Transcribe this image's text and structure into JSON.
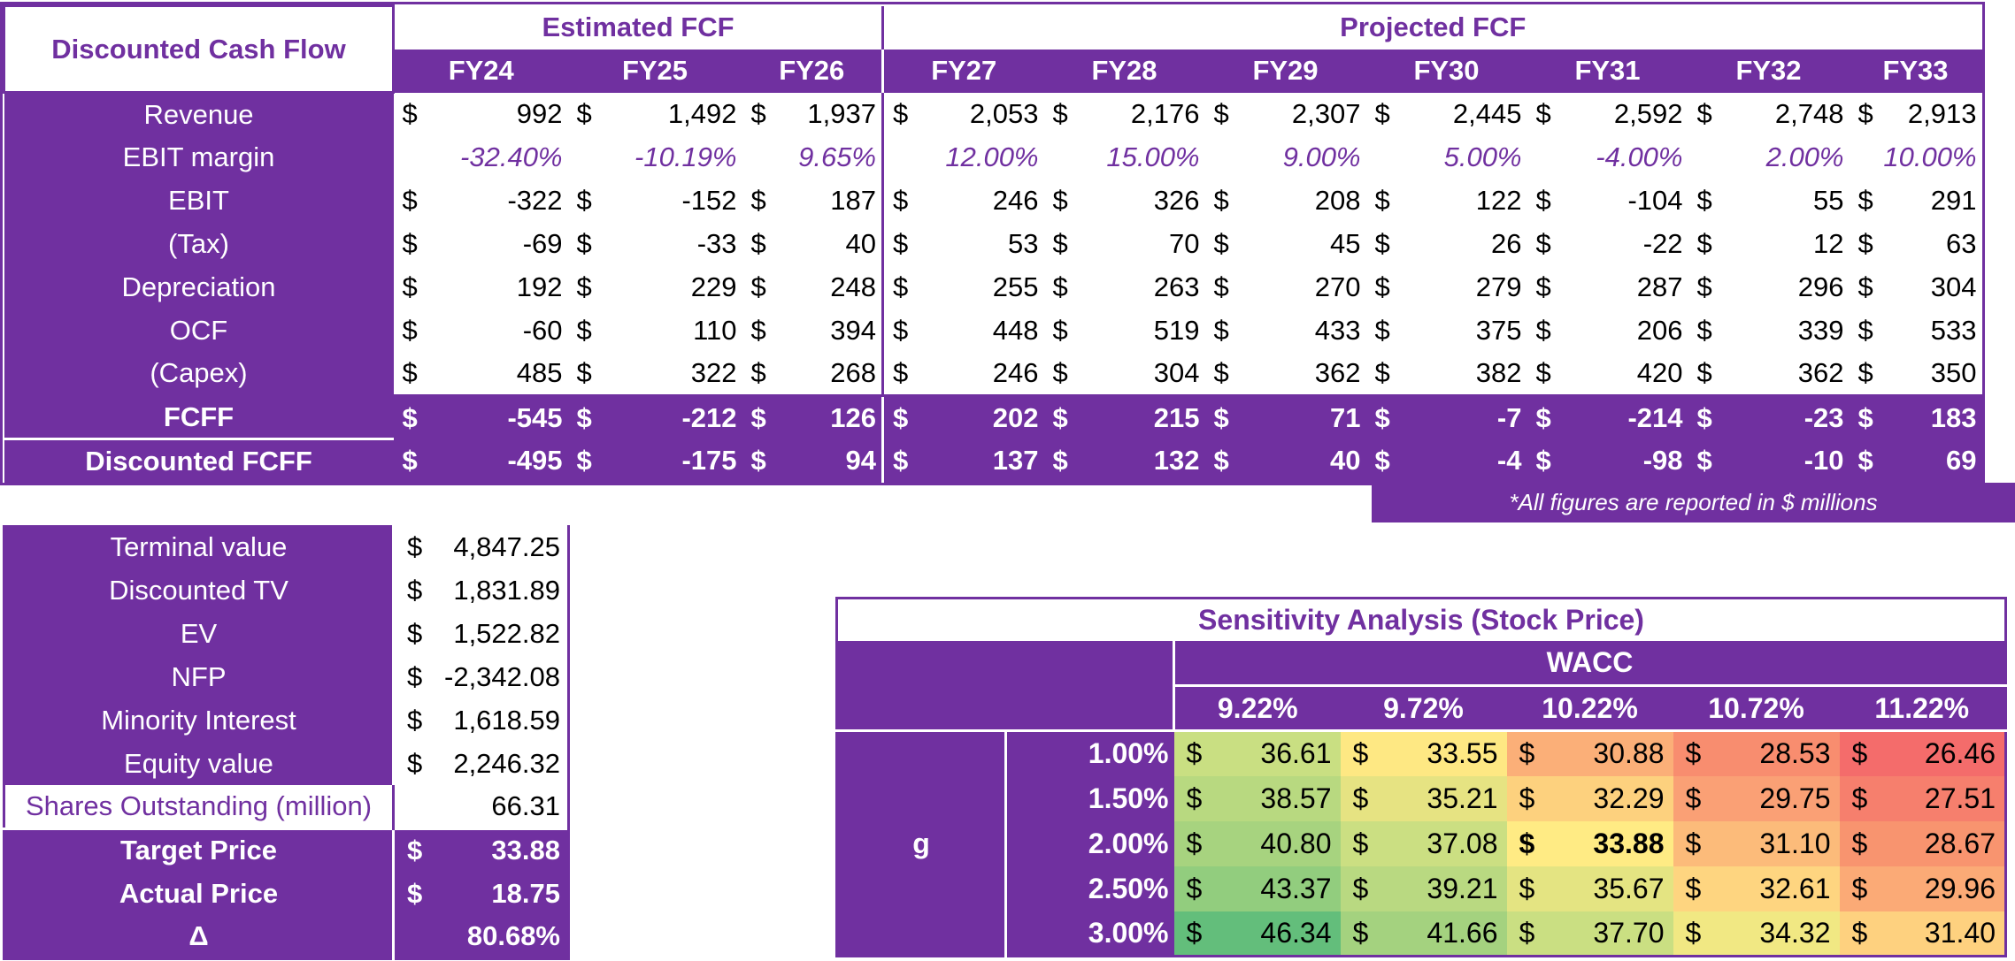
{
  "dcf": {
    "title": "Discounted Cash Flow",
    "estimated_label": "Estimated FCF",
    "projected_label": "Projected FCF",
    "currency": "$",
    "years": [
      "FY24",
      "FY25",
      "FY26",
      "FY27",
      "FY28",
      "FY29",
      "FY30",
      "FY31",
      "FY32",
      "FY33"
    ],
    "rows": [
      {
        "label": "Revenue",
        "type": "money",
        "values": [
          "992",
          "1,492",
          "1,937",
          "2,053",
          "2,176",
          "2,307",
          "2,445",
          "2,592",
          "2,748",
          "2,913"
        ]
      },
      {
        "label": "EBIT margin",
        "type": "pct",
        "values": [
          "-32.40%",
          "-10.19%",
          "9.65%",
          "12.00%",
          "15.00%",
          "9.00%",
          "5.00%",
          "-4.00%",
          "2.00%",
          "10.00%"
        ]
      },
      {
        "label": "EBIT",
        "type": "money",
        "values": [
          "-322",
          "-152",
          "187",
          "246",
          "326",
          "208",
          "122",
          "-104",
          "55",
          "291"
        ]
      },
      {
        "label": "(Tax)",
        "type": "money",
        "values": [
          "-69",
          "-33",
          "40",
          "53",
          "70",
          "45",
          "26",
          "-22",
          "12",
          "63"
        ]
      },
      {
        "label": "Depreciation",
        "type": "money",
        "values": [
          "192",
          "229",
          "248",
          "255",
          "263",
          "270",
          "279",
          "287",
          "296",
          "304"
        ]
      },
      {
        "label": "OCF",
        "type": "money",
        "values": [
          "-60",
          "110",
          "394",
          "448",
          "519",
          "433",
          "375",
          "206",
          "339",
          "533"
        ]
      },
      {
        "label": "(Capex)",
        "type": "money",
        "values": [
          "485",
          "322",
          "268",
          "246",
          "304",
          "362",
          "382",
          "420",
          "362",
          "350"
        ]
      },
      {
        "label": "FCFF",
        "type": "money-bold",
        "values": [
          "-545",
          "-212",
          "126",
          "202",
          "215",
          "71",
          "-7",
          "-214",
          "-23",
          "183"
        ]
      },
      {
        "label": "Discounted FCFF",
        "type": "money-bold",
        "values": [
          "-495",
          "-175",
          "94",
          "137",
          "132",
          "40",
          "-4",
          "-98",
          "-10",
          "69"
        ]
      }
    ],
    "note": "*All figures are reported in $ millions"
  },
  "valuation": {
    "rows": [
      {
        "label": "Terminal value",
        "sign": "$",
        "value": "4,847.25"
      },
      {
        "label": "Discounted TV",
        "sign": "$",
        "value": "1,831.89"
      },
      {
        "label": "EV",
        "sign": "$",
        "value": "1,522.82"
      },
      {
        "label": "NFP",
        "sign": "$",
        "value": "-2,342.08"
      },
      {
        "label": "Minority Interest",
        "sign": "$",
        "value": "1,618.59"
      },
      {
        "label": "Equity value",
        "sign": "$",
        "value": "2,246.32"
      },
      {
        "label": "Shares Outstanding (million)",
        "sign": "",
        "value": "66.31"
      },
      {
        "label": "Target Price",
        "sign": "$",
        "value": "33.88",
        "bold": true
      },
      {
        "label": "Actual Price",
        "sign": "$",
        "value": "18.75",
        "bold": true
      },
      {
        "label": "Δ",
        "sign": "",
        "value": "80.68%",
        "bold": true
      }
    ]
  },
  "sensitivity": {
    "title": "Sensitivity Analysis (Stock Price)",
    "wacc_label": "WACC",
    "g_label": "g",
    "wacc": [
      "9.22%",
      "9.72%",
      "10.22%",
      "10.72%",
      "11.22%"
    ],
    "g": [
      "1.00%",
      "1.50%",
      "2.00%",
      "2.50%",
      "3.00%"
    ],
    "values": [
      [
        "36.61",
        "33.55",
        "30.88",
        "28.53",
        "26.46"
      ],
      [
        "38.57",
        "35.21",
        "32.29",
        "29.75",
        "27.51"
      ],
      [
        "40.80",
        "37.08",
        "33.88",
        "31.10",
        "28.67"
      ],
      [
        "43.37",
        "39.21",
        "35.67",
        "32.61",
        "29.96"
      ],
      [
        "46.34",
        "41.66",
        "37.70",
        "34.32",
        "31.40"
      ]
    ],
    "colors": [
      [
        "#c9df82",
        "#fee883",
        "#fbaf78",
        "#f88d6f",
        "#f46c6b"
      ],
      [
        "#b8d980",
        "#e6e382",
        "#fdd17e",
        "#faa075",
        "#f67f6d"
      ],
      [
        "#a7d37f",
        "#cbdf82",
        "#ffeb84",
        "#fcbb7a",
        "#f8946f"
      ],
      [
        "#92cd7e",
        "#b9d981",
        "#e4e482",
        "#fed580",
        "#fbaa76"
      ],
      [
        "#63be7b",
        "#a4d27f",
        "#cadf82",
        "#f1e883",
        "#fed17f"
      ]
    ],
    "highlight": [
      2,
      2
    ]
  }
}
